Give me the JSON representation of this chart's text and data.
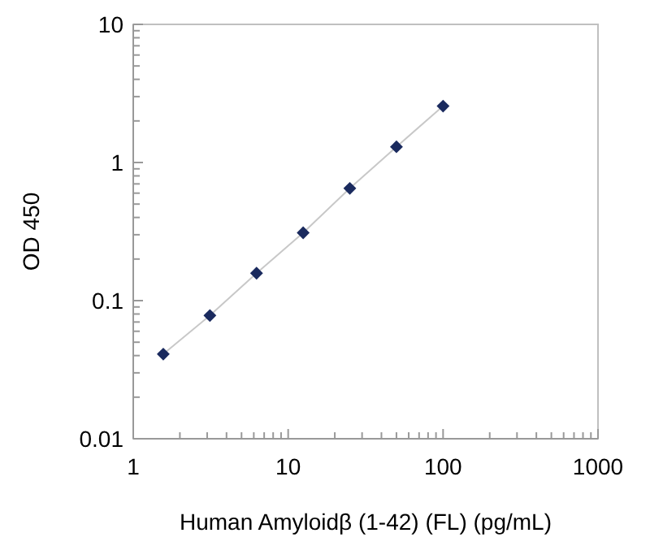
{
  "chart_data": {
    "type": "scatter",
    "xlabel": "Human Amyloidβ (1-42) (FL) (pg/mL)",
    "ylabel": "OD 450",
    "log": "xy",
    "grid": false,
    "xlim": [
      1,
      1000
    ],
    "ylim": [
      0.01,
      10
    ],
    "xticks": [
      1,
      {
        "value": 2,
        "label": null
      },
      {
        "value": 3,
        "label": null
      },
      {
        "value": 4,
        "label": null
      },
      {
        "value": 5,
        "label": null
      },
      {
        "value": 6,
        "label": null
      },
      {
        "value": 7,
        "label": null
      },
      {
        "value": 8,
        "label": null
      },
      {
        "value": 9,
        "label": null
      },
      10,
      {
        "value": 20,
        "label": null
      },
      {
        "value": 30,
        "label": null
      },
      {
        "value": 40,
        "label": null
      },
      {
        "value": 50,
        "label": null
      },
      {
        "value": 60,
        "label": null
      },
      {
        "value": 70,
        "label": null
      },
      {
        "value": 80,
        "label": null
      },
      {
        "value": 90,
        "label": null
      },
      100,
      {
        "value": 200,
        "label": null
      },
      {
        "value": 300,
        "label": null
      },
      {
        "value": 400,
        "label": null
      },
      {
        "value": 500,
        "label": null
      },
      {
        "value": 600,
        "label": null
      },
      {
        "value": 700,
        "label": null
      },
      {
        "value": 800,
        "label": null
      },
      {
        "value": 900,
        "label": null
      },
      1000
    ],
    "yticks": [
      0.01,
      {
        "value": 0.02,
        "label": null
      },
      {
        "value": 0.03,
        "label": null
      },
      {
        "value": 0.04,
        "label": null
      },
      {
        "value": 0.05,
        "label": null
      },
      {
        "value": 0.06,
        "label": null
      },
      {
        "value": 0.07,
        "label": null
      },
      {
        "value": 0.08,
        "label": null
      },
      {
        "value": 0.09,
        "label": null
      },
      0.1,
      {
        "value": 0.2,
        "label": null
      },
      {
        "value": 0.3,
        "label": null
      },
      {
        "value": 0.4,
        "label": null
      },
      {
        "value": 0.5,
        "label": null
      },
      {
        "value": 0.6,
        "label": null
      },
      {
        "value": 0.7,
        "label": null
      },
      {
        "value": 0.8,
        "label": null
      },
      {
        "value": 0.9,
        "label": null
      },
      1,
      {
        "value": 2,
        "label": null
      },
      {
        "value": 3,
        "label": null
      },
      {
        "value": 4,
        "label": null
      },
      {
        "value": 5,
        "label": null
      },
      {
        "value": 6,
        "label": null
      },
      {
        "value": 7,
        "label": null
      },
      {
        "value": 8,
        "label": null
      },
      {
        "value": 9,
        "label": null
      },
      10
    ],
    "x": [
      1.5625,
      3.125,
      6.25,
      12.5,
      25,
      50,
      100
    ],
    "series": [
      {
        "type": "line",
        "color": "#c8c8c8",
        "marker": "none",
        "line_style": "solid",
        "values": [
          0.041,
          0.078,
          0.158,
          0.31,
          0.65,
          1.3,
          2.56
        ]
      },
      {
        "color": "#1a2a5e",
        "marker": "diamond",
        "values": [
          0.041,
          0.078,
          0.158,
          0.31,
          0.65,
          1.3,
          2.56
        ]
      }
    ]
  }
}
